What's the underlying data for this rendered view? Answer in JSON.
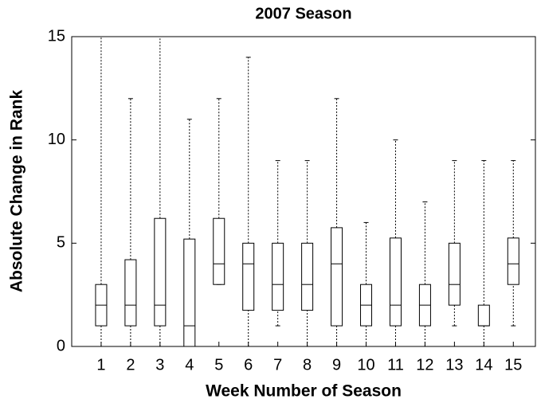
{
  "chart_data": {
    "type": "boxplot",
    "title": "2007 Season",
    "x_label": "Week Number of Season",
    "y_label": "Absolute Change in Rank",
    "categories": [
      "1",
      "2",
      "3",
      "4",
      "5",
      "6",
      "7",
      "8",
      "9",
      "10",
      "11",
      "12",
      "13",
      "14",
      "15"
    ],
    "whisker_low": [
      0,
      0,
      0,
      0,
      3,
      0,
      1,
      0,
      0,
      0,
      0,
      0,
      1,
      0,
      1
    ],
    "q1": [
      1,
      1,
      1,
      0,
      3,
      1.75,
      1.75,
      1.75,
      1,
      1,
      1,
      1,
      2,
      1,
      3
    ],
    "median": [
      2,
      2,
      2,
      1,
      4,
      4,
      3,
      3,
      4,
      2,
      2,
      2,
      3,
      1,
      4
    ],
    "q3": [
      3,
      4.2,
      6.2,
      5.2,
      6.2,
      5,
      5,
      5,
      5.75,
      3,
      5.25,
      3,
      5,
      2,
      5.25
    ],
    "whisker_high": [
      15,
      12,
      15,
      11,
      12,
      14,
      9,
      9,
      12,
      6,
      10,
      7,
      9,
      9,
      9
    ],
    "color": "#000000",
    "ylim": [
      0,
      15
    ],
    "yticks": [
      0,
      5,
      10,
      15
    ]
  }
}
